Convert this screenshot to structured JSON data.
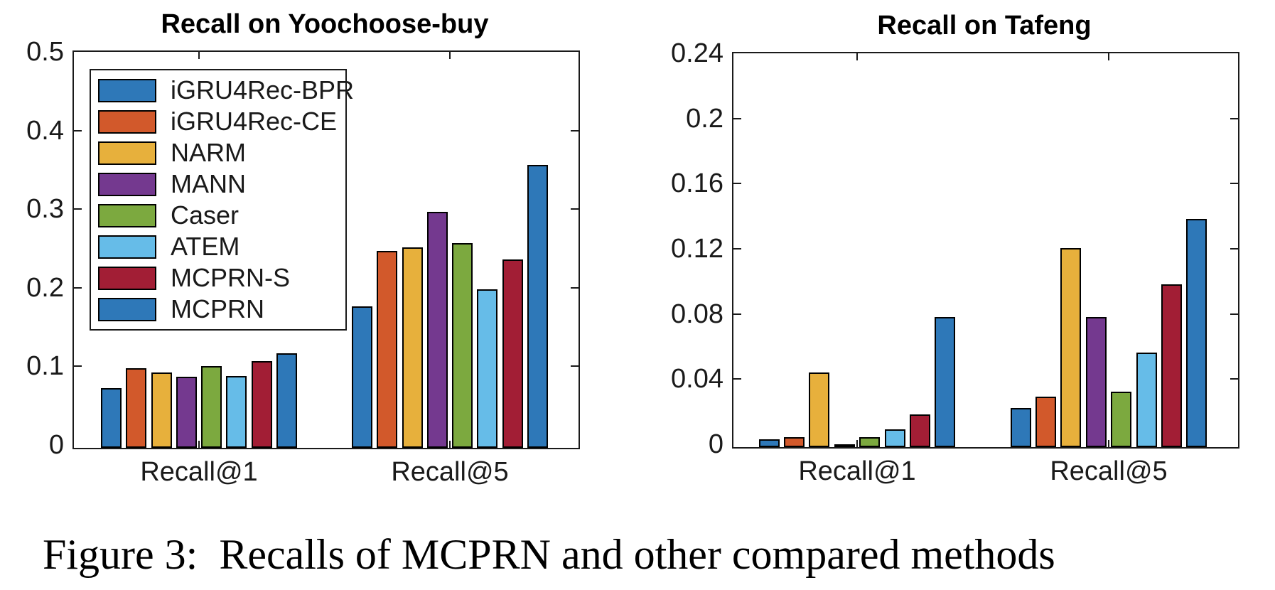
{
  "figure_caption": "Figure 3:  Recalls of MCPRN and other compared methods",
  "palette": {
    "blue": "#2E78B8",
    "orange": "#D2592B",
    "yellow": "#E7B03C",
    "purple": "#74398F",
    "green": "#7CA93F",
    "light_blue": "#66BCE8",
    "dark_red": "#A21E35",
    "axis": "#1a1a1a",
    "bar_edge": "#000000"
  },
  "legend": {
    "entries": [
      {
        "label": "iGRU4Rec-BPR",
        "color": "#2E78B8"
      },
      {
        "label": "iGRU4Rec-CE",
        "color": "#D2592B"
      },
      {
        "label": "NARM",
        "color": "#E7B03C"
      },
      {
        "label": "MANN",
        "color": "#74398F"
      },
      {
        "label": "Caser",
        "color": "#7CA93F"
      },
      {
        "label": "ATEM",
        "color": "#66BCE8"
      },
      {
        "label": "MCPRN-S",
        "color": "#A21E35"
      },
      {
        "label": "MCPRN",
        "color": "#2E78B8"
      }
    ]
  },
  "chart_data": [
    {
      "type": "bar",
      "title": "Recall on Yoochoose-buy",
      "categories": [
        "Recall@1",
        "Recall@5"
      ],
      "series": [
        {
          "name": "iGRU4Rec-BPR",
          "color": "#2E78B8",
          "values": [
            0.076,
            0.18
          ]
        },
        {
          "name": "iGRU4Rec-CE",
          "color": "#D2592B",
          "values": [
            0.101,
            0.25
          ]
        },
        {
          "name": "NARM",
          "color": "#E7B03C",
          "values": [
            0.096,
            0.255
          ]
        },
        {
          "name": "MANN",
          "color": "#74398F",
          "values": [
            0.09,
            0.3
          ]
        },
        {
          "name": "Caser",
          "color": "#7CA93F",
          "values": [
            0.104,
            0.26
          ]
        },
        {
          "name": "ATEM",
          "color": "#66BCE8",
          "values": [
            0.091,
            0.202
          ]
        },
        {
          "name": "MCPRN-S",
          "color": "#A21E35",
          "values": [
            0.11,
            0.24
          ]
        },
        {
          "name": "MCPRN",
          "color": "#2E78B8",
          "values": [
            0.12,
            0.36
          ]
        }
      ],
      "xlabel": "",
      "ylabel": "",
      "ylim": [
        0,
        0.5
      ],
      "yticks": [
        {
          "v": 0.0,
          "label": "0"
        },
        {
          "v": 0.1,
          "label": "0.1"
        },
        {
          "v": 0.2,
          "label": "0.2"
        },
        {
          "v": 0.3,
          "label": "0.3"
        },
        {
          "v": 0.4,
          "label": "0.4"
        },
        {
          "v": 0.5,
          "label": "0.5"
        }
      ],
      "grid": false,
      "legend_position": "upper-left-inside"
    },
    {
      "type": "bar",
      "title": "Recall on Tafeng",
      "categories": [
        "Recall@1",
        "Recall@5"
      ],
      "series": [
        {
          "name": "iGRU4Rec-BPR",
          "color": "#2E78B8",
          "values": [
            0.005,
            0.024
          ]
        },
        {
          "name": "iGRU4Rec-CE",
          "color": "#D2592B",
          "values": [
            0.006,
            0.031
          ]
        },
        {
          "name": "NARM",
          "color": "#E7B03C",
          "values": [
            0.046,
            0.122
          ]
        },
        {
          "name": "MANN",
          "color": "#74398F",
          "values": [
            0.001,
            0.08
          ]
        },
        {
          "name": "Caser",
          "color": "#7CA93F",
          "values": [
            0.006,
            0.034
          ]
        },
        {
          "name": "ATEM",
          "color": "#66BCE8",
          "values": [
            0.011,
            0.058
          ]
        },
        {
          "name": "MCPRN-S",
          "color": "#A21E35",
          "values": [
            0.02,
            0.1
          ]
        },
        {
          "name": "MCPRN",
          "color": "#2E78B8",
          "values": [
            0.08,
            0.14
          ]
        }
      ],
      "xlabel": "",
      "ylabel": "",
      "ylim": [
        0,
        0.24
      ],
      "yticks": [
        {
          "v": 0.0,
          "label": "0"
        },
        {
          "v": 0.04,
          "label": "0.04"
        },
        {
          "v": 0.08,
          "label": "0.08"
        },
        {
          "v": 0.12,
          "label": "0.12"
        },
        {
          "v": 0.16,
          "label": "0.16"
        },
        {
          "v": 0.2,
          "label": "0.2"
        },
        {
          "v": 0.24,
          "label": "0.24"
        }
      ],
      "grid": false,
      "legend_position": "none"
    }
  ]
}
